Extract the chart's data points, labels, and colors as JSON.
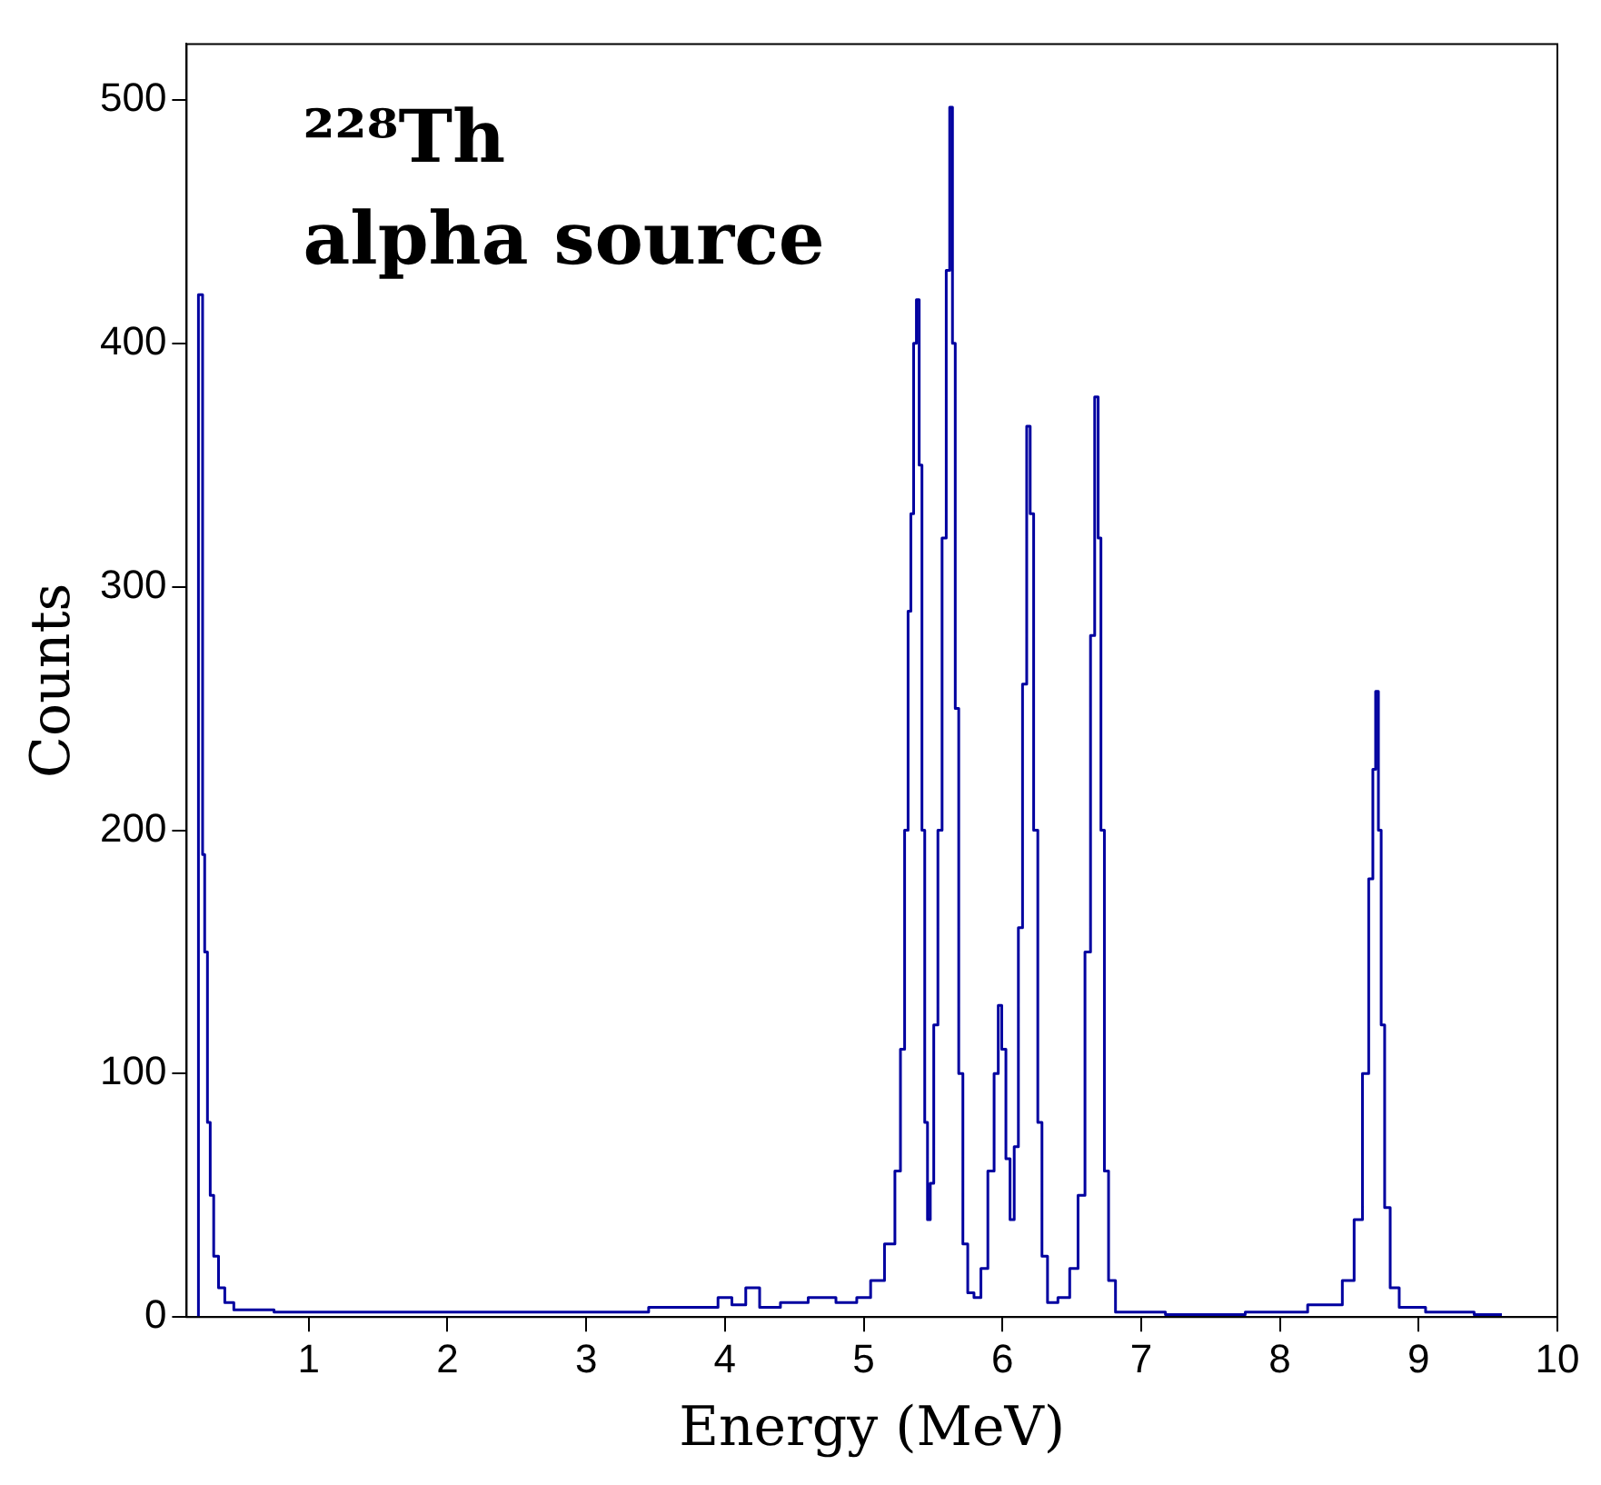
{
  "chart_data": {
    "type": "step",
    "xlabel": "Energy (MeV)",
    "ylabel": "Counts",
    "annotations": [
      "²²⁸Th",
      "alpha source"
    ],
    "xlim": [
      0.12,
      10
    ],
    "xticks": [
      1,
      2,
      3,
      4,
      5,
      6,
      7,
      8,
      9,
      10
    ],
    "ylim": [
      0,
      523
    ],
    "yticks": [
      0,
      100,
      200,
      300,
      400,
      500
    ],
    "grid": false,
    "x": [
      0.2,
      0.21,
      0.23,
      0.24,
      0.26,
      0.28,
      0.3,
      0.33,
      0.37,
      0.42,
      0.5,
      1,
      2,
      3,
      3.9,
      4.0,
      4.1,
      4.2,
      4.3,
      4.5,
      4.7,
      4.9,
      5.0,
      5.1,
      5.2,
      5.25,
      5.28,
      5.31,
      5.33,
      5.35,
      5.37,
      5.39,
      5.41,
      5.43,
      5.45,
      5.47,
      5.49,
      5.52,
      5.55,
      5.58,
      5.61,
      5.63,
      5.65,
      5.67,
      5.7,
      5.73,
      5.77,
      5.82,
      5.87,
      5.92,
      5.96,
      5.98,
      6.01,
      6.04,
      6.07,
      6.1,
      6.13,
      6.16,
      6.19,
      6.21,
      6.24,
      6.27,
      6.3,
      6.35,
      6.45,
      6.52,
      6.57,
      6.62,
      6.65,
      6.68,
      6.7,
      6.72,
      6.75,
      6.78,
      6.85,
      7.5,
      8.0,
      8.4,
      8.5,
      8.57,
      8.62,
      8.66,
      8.68,
      8.7,
      8.72,
      8.74,
      8.77,
      8.82,
      8.9,
      9.2,
      9.6
    ],
    "series": [
      {
        "color": "#0000a0",
        "values": [
          0,
          420,
          420,
          190,
          150,
          80,
          50,
          25,
          12,
          6,
          3,
          2,
          2,
          2,
          4,
          8,
          5,
          12,
          4,
          6,
          8,
          6,
          8,
          15,
          30,
          60,
          110,
          200,
          290,
          330,
          400,
          418,
          350,
          200,
          80,
          40,
          55,
          120,
          200,
          320,
          430,
          497,
          400,
          250,
          100,
          30,
          10,
          8,
          20,
          60,
          100,
          128,
          110,
          65,
          40,
          70,
          160,
          260,
          366,
          330,
          200,
          80,
          25,
          6,
          8,
          20,
          50,
          150,
          280,
          378,
          320,
          200,
          60,
          15,
          2,
          1,
          2,
          5,
          15,
          40,
          100,
          180,
          225,
          257,
          200,
          120,
          45,
          12,
          4,
          2,
          1
        ]
      }
    ]
  }
}
